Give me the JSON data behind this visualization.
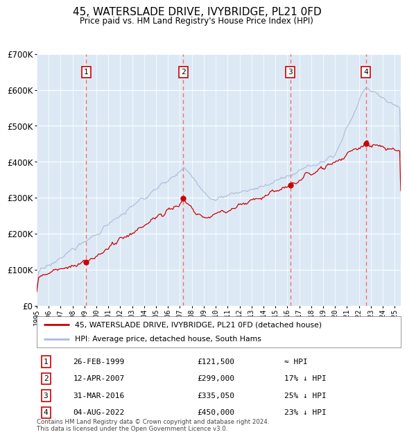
{
  "title": "45, WATERSLADE DRIVE, IVYBRIDGE, PL21 0FD",
  "subtitle": "Price paid vs. HM Land Registry's House Price Index (HPI)",
  "background_color": "#dce9f5",
  "grid_color": "#ffffff",
  "hpi_line_color": "#aabcd8",
  "price_line_color": "#cc0000",
  "sale_dot_color": "#cc0000",
  "vline_color": "#ff5555",
  "sale_events": [
    {
      "num": 1,
      "date_str": "26-FEB-1999",
      "date_x": 1999.15,
      "price": 121500,
      "hpi_diff": "≈ HPI"
    },
    {
      "num": 2,
      "date_str": "12-APR-2007",
      "date_x": 2007.28,
      "price": 299000,
      "hpi_diff": "17% ↓ HPI"
    },
    {
      "num": 3,
      "date_str": "31-MAR-2016",
      "date_x": 2016.25,
      "price": 335050,
      "hpi_diff": "25% ↓ HPI"
    },
    {
      "num": 4,
      "date_str": "04-AUG-2022",
      "date_x": 2022.59,
      "price": 450000,
      "hpi_diff": "23% ↓ HPI"
    }
  ],
  "xmin": 1995.0,
  "xmax": 2025.5,
  "ymin": 0,
  "ymax": 700000,
  "yticks": [
    0,
    100000,
    200000,
    300000,
    400000,
    500000,
    600000,
    700000
  ],
  "ytick_labels": [
    "£0",
    "£100K",
    "£200K",
    "£300K",
    "£400K",
    "£500K",
    "£600K",
    "£700K"
  ],
  "footnote": "Contains HM Land Registry data © Crown copyright and database right 2024.\nThis data is licensed under the Open Government Licence v3.0.",
  "legend_line1": "45, WATERSLADE DRIVE, IVYBRIDGE, PL21 0FD (detached house)",
  "legend_line2": "HPI: Average price, detached house, South Hams"
}
